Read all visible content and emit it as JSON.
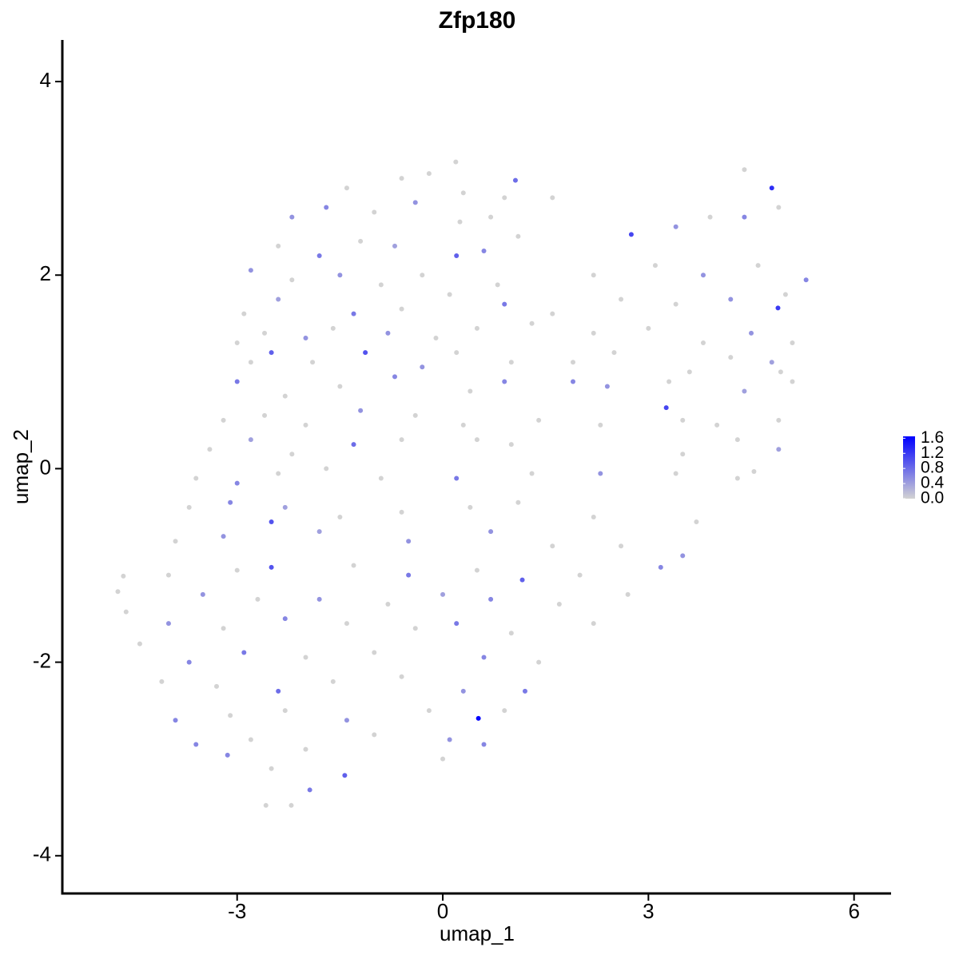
{
  "chart_data": {
    "type": "scatter",
    "title": "Zfp180",
    "xlabel": "umap_1",
    "ylabel": "umap_2",
    "xlim": [
      -5.55,
      6.54
    ],
    "ylim": [
      -4.39,
      4.43
    ],
    "xticks": [
      -3,
      0,
      3,
      6
    ],
    "yticks": [
      -4,
      -2,
      0,
      2,
      4
    ],
    "low_color": "#d3d3d3",
    "high_color": "#0000ff",
    "colorlim": [
      0,
      1.65
    ],
    "colorticks": [
      {
        "value": 0,
        "label": "0.0"
      },
      0.4,
      0.8,
      1.2,
      1.6
    ],
    "grid": false,
    "x": [
      -1.4,
      -0.6,
      -0.2,
      0.3,
      0.9,
      1.6,
      -2.2,
      -1.7,
      -1.0,
      -0.4,
      0.25,
      0.7,
      -2.4,
      -1.8,
      -1.2,
      -0.7,
      0.6,
      1.1,
      3.4,
      3.9,
      4.4,
      4.9,
      -2.8,
      -2.2,
      -1.5,
      -0.9,
      -0.3,
      0.8,
      2.2,
      3.1,
      3.8,
      4.6,
      5.3,
      -2.9,
      -2.4,
      -1.3,
      -0.6,
      0.1,
      0.9,
      1.6,
      2.6,
      3.4,
      4.2,
      5.0,
      -3.0,
      -2.6,
      -2.0,
      -1.6,
      -0.8,
      -0.1,
      0.5,
      1.3,
      2.2,
      3.0,
      3.8,
      4.5,
      5.1,
      -2.8,
      -2.5,
      -1.9,
      -0.3,
      0.2,
      1.0,
      1.9,
      2.5,
      3.6,
      4.2,
      4.8,
      -3.0,
      -2.3,
      -1.5,
      -0.7,
      0.4,
      0.9,
      1.9,
      2.4,
      3.3,
      4.4,
      5.1,
      -3.2,
      -2.6,
      -2.0,
      -1.2,
      -0.4,
      0.3,
      1.4,
      2.3,
      3.5,
      4.0,
      4.9,
      -3.4,
      -2.8,
      -2.2,
      -1.3,
      -0.6,
      0.5,
      1.0,
      3.5,
      4.3,
      4.9,
      -3.6,
      -3.0,
      -2.4,
      -1.7,
      -0.9,
      0.2,
      1.3,
      2.3,
      3.4,
      4.3,
      -3.7,
      -3.1,
      -2.3,
      -1.5,
      -0.6,
      0.4,
      1.1,
      2.2,
      3.7,
      -3.9,
      -3.2,
      -2.5,
      -1.8,
      -0.5,
      0.7,
      1.6,
      2.6,
      3.5,
      -4.0,
      -3.0,
      -2.5,
      -1.3,
      -0.5,
      0.5,
      1.16,
      2.0,
      3.18,
      -4.66,
      -4.74,
      -3.5,
      -2.7,
      -1.8,
      -0.8,
      0.0,
      0.7,
      1.7,
      2.7,
      -4.62,
      -4.0,
      -3.2,
      -2.3,
      -1.4,
      -0.4,
      0.2,
      1.0,
      2.2,
      -4.42,
      -3.7,
      -2.9,
      -2.0,
      -1.0,
      0.6,
      1.4,
      -4.1,
      -3.3,
      -2.4,
      -1.6,
      -0.6,
      0.3,
      1.2,
      -3.9,
      -3.1,
      -2.3,
      -1.4,
      -0.2,
      0.52,
      0.9,
      -3.6,
      -2.8,
      -2.0,
      -1.0,
      0.1,
      0.6,
      -3.14,
      -1.43,
      -2.5,
      0,
      -1.94,
      -2.58,
      -2.21,
      0.19,
      4.4,
      4.8,
      4.89,
      2.75,
      3.26,
      -1.13,
      0.2,
      1.06,
      4.93,
      4.54
    ],
    "y": [
      2.9,
      3.0,
      3.05,
      2.85,
      2.8,
      2.8,
      2.6,
      2.7,
      2.65,
      2.75,
      2.55,
      2.6,
      2.3,
      2.2,
      2.35,
      2.3,
      2.25,
      2.4,
      2.5,
      2.6,
      2.6,
      2.7,
      2.05,
      1.95,
      2.0,
      1.9,
      2.0,
      1.9,
      2.0,
      2.1,
      2.0,
      2.1,
      1.95,
      1.6,
      1.75,
      1.6,
      1.65,
      1.8,
      1.7,
      1.6,
      1.75,
      1.7,
      1.75,
      1.8,
      1.3,
      1.4,
      1.35,
      1.45,
      1.4,
      1.35,
      1.45,
      1.5,
      1.4,
      1.45,
      1.3,
      1.4,
      1.3,
      1.1,
      1.2,
      1.1,
      1.05,
      1.2,
      1.1,
      1.1,
      1.2,
      1.0,
      1.15,
      1.1,
      0.9,
      0.75,
      0.85,
      0.95,
      0.8,
      0.9,
      0.9,
      0.85,
      0.9,
      0.8,
      0.9,
      0.5,
      0.55,
      0.45,
      0.6,
      0.55,
      0.45,
      0.5,
      0.45,
      0.5,
      0.45,
      0.5,
      0.2,
      0.3,
      0.15,
      0.25,
      0.3,
      0.3,
      0.25,
      0.15,
      0.3,
      0.2,
      -0.1,
      -0.15,
      -0.05,
      0,
      -0.1,
      -0.1,
      -0.05,
      -0.05,
      -0.05,
      -0.1,
      -0.4,
      -0.35,
      -0.4,
      -0.5,
      -0.45,
      -0.4,
      -0.35,
      -0.5,
      -0.55,
      -0.75,
      -0.7,
      -0.55,
      -0.65,
      -0.75,
      -0.65,
      -0.8,
      -0.8,
      -0.9,
      -1.1,
      -1.05,
      -1.02,
      -1.0,
      -1.1,
      -1.05,
      -1.15,
      -1.1,
      -1.02,
      -1.11,
      -1.27,
      -1.3,
      -1.35,
      -1.35,
      -1.4,
      -1.3,
      -1.35,
      -1.4,
      -1.3,
      -1.48,
      -1.6,
      -1.65,
      -1.55,
      -1.6,
      -1.65,
      -1.6,
      -1.7,
      -1.6,
      -1.81,
      -2.0,
      -1.9,
      -1.95,
      -1.9,
      -1.95,
      -2.0,
      -2.2,
      -2.25,
      -2.3,
      -2.2,
      -2.15,
      -2.3,
      -2.3,
      -2.6,
      -2.55,
      -2.5,
      -2.6,
      -2.5,
      -2.58,
      -2.5,
      -2.85,
      -2.8,
      -2.9,
      -2.75,
      -2.8,
      -2.85,
      -2.96,
      -3.17,
      -3.1,
      -3.0,
      -3.32,
      -3.48,
      -3.48,
      3.17,
      3.09,
      2.9,
      1.66,
      2.42,
      0.63,
      1.2,
      2.2,
      2.98,
      1.0,
      -0.03
    ],
    "values": [
      0,
      0,
      0,
      0,
      0,
      0,
      0.5,
      0.6,
      0,
      0.5,
      0,
      0,
      0,
      0.7,
      0,
      0.4,
      0.6,
      0,
      0.5,
      0,
      0.6,
      0,
      0.5,
      0,
      0.5,
      0,
      0,
      0,
      0,
      0,
      0.5,
      0,
      0.6,
      0,
      0.4,
      0.7,
      0,
      0,
      0.7,
      0,
      0,
      0,
      0.5,
      0,
      0,
      0,
      0.5,
      0,
      0.5,
      0,
      0,
      0,
      0,
      0,
      0,
      0.5,
      0,
      0,
      0.9,
      0,
      0.5,
      0,
      0,
      0,
      0,
      0,
      0,
      0.4,
      0.7,
      0,
      0,
      0.6,
      0,
      0.6,
      0.6,
      0.5,
      0,
      0.4,
      0,
      0,
      0,
      0,
      0.5,
      0,
      0,
      0,
      0,
      0,
      0,
      0,
      0,
      0.4,
      0,
      0.8,
      0,
      0,
      0,
      0,
      0,
      0.4,
      0,
      0.6,
      0,
      0,
      0,
      0.7,
      0,
      0.5,
      0,
      0,
      0,
      0.6,
      0.4,
      0,
      0,
      0,
      0,
      0,
      0,
      0,
      0.5,
      1.0,
      0.4,
      0.5,
      0.5,
      0,
      0,
      0.5,
      0,
      0,
      1.0,
      0,
      0.7,
      0,
      0.9,
      0,
      0.6,
      0,
      0,
      0.5,
      0,
      0.5,
      0,
      0.4,
      0.6,
      0,
      0,
      0,
      0.5,
      0,
      0.6,
      0,
      0,
      0.7,
      0,
      0,
      0,
      0.6,
      0.7,
      0,
      0,
      0.6,
      0,
      0,
      0,
      0.8,
      0,
      0,
      0.5,
      0.7,
      0.6,
      0,
      0,
      0.5,
      0,
      1.6,
      0,
      0.6,
      0,
      0,
      0,
      0.5,
      0.6,
      0.6,
      0.9,
      0,
      0,
      0.7,
      0,
      0,
      0,
      0,
      1.3,
      1.2,
      1.1,
      1.1,
      1.0,
      0.9,
      0.8,
      0,
      0
    ]
  }
}
